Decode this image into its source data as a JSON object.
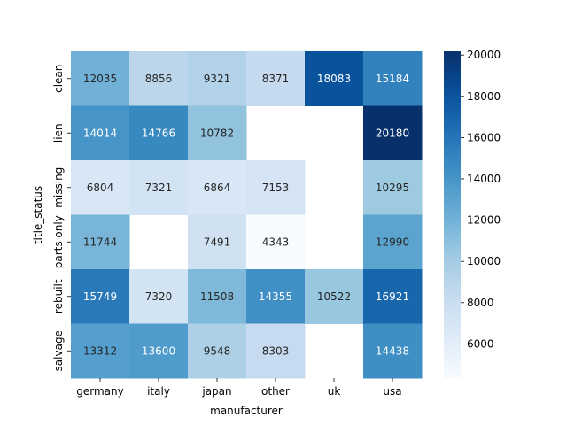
{
  "chart_data": {
    "type": "heatmap",
    "title": "",
    "xlabel": "manufacturer",
    "ylabel": "title_status",
    "x_categories": [
      "germany",
      "italy",
      "japan",
      "other",
      "uk",
      "usa"
    ],
    "y_categories": [
      "clean",
      "lien",
      "missing",
      "parts only",
      "rebuilt",
      "salvage"
    ],
    "values": [
      [
        12035,
        8856,
        9321,
        8371,
        18083,
        15184
      ],
      [
        14014,
        14766,
        10782,
        null,
        null,
        20180
      ],
      [
        6804,
        7321,
        6864,
        7153,
        null,
        10295
      ],
      [
        11744,
        null,
        7491,
        4343,
        null,
        12990
      ],
      [
        15749,
        7320,
        11508,
        14355,
        10522,
        16921
      ],
      [
        13312,
        13600,
        9548,
        8303,
        null,
        14438
      ]
    ],
    "colormap": "Blues",
    "value_range": [
      4343,
      20180
    ],
    "colorbar_ticks": [
      6000,
      8000,
      10000,
      12000,
      14000,
      16000,
      18000,
      20000
    ],
    "missing_cells_blank": true
  }
}
